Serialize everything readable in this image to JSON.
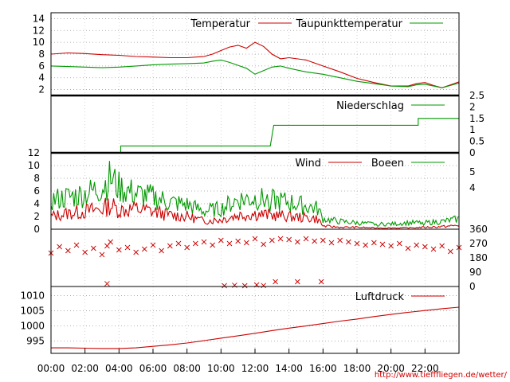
{
  "chart_data": [
    {
      "type": "line",
      "panel": "temperature",
      "ylim": [
        1,
        15
      ],
      "yticks": [
        2,
        4,
        6,
        8,
        10,
        12,
        14
      ],
      "grid": "horizontal dotted",
      "legend_position": "top-right",
      "series": [
        {
          "name": "Temperatur",
          "color": "#cc0000",
          "x": [
            0,
            1,
            2,
            3,
            4,
            5,
            6,
            7,
            8,
            9,
            9.5,
            10,
            10.5,
            11,
            11.5,
            12,
            12.5,
            13,
            13.5,
            14,
            15,
            16,
            17,
            18,
            19,
            20,
            21,
            21.5,
            22,
            22.5,
            23,
            23.5,
            24
          ],
          "y": [
            8.0,
            8.2,
            8.1,
            7.9,
            7.8,
            7.6,
            7.5,
            7.4,
            7.4,
            7.6,
            8.0,
            8.6,
            9.2,
            9.5,
            9.0,
            10.0,
            9.3,
            8.0,
            7.2,
            7.4,
            7.0,
            6.0,
            5.0,
            3.9,
            3.2,
            2.6,
            2.6,
            3.0,
            3.2,
            2.7,
            2.3,
            2.8,
            3.3
          ]
        },
        {
          "name": "Taupunkttemperatur",
          "color": "#009900",
          "x": [
            0,
            1,
            2,
            3,
            4,
            5,
            6,
            7,
            8,
            9,
            9.5,
            10,
            10.5,
            11,
            11.5,
            12,
            12.5,
            13,
            13.5,
            14,
            15,
            16,
            17,
            18,
            19,
            20,
            21,
            21.5,
            22,
            22.5,
            23,
            23.5,
            24
          ],
          "y": [
            6.0,
            5.9,
            5.8,
            5.7,
            5.8,
            6.0,
            6.2,
            6.3,
            6.4,
            6.5,
            6.8,
            7.0,
            6.6,
            6.1,
            5.6,
            4.6,
            5.2,
            5.8,
            6.0,
            5.6,
            5.0,
            4.6,
            4.0,
            3.4,
            3.0,
            2.6,
            2.5,
            2.8,
            2.9,
            2.6,
            2.3,
            2.7,
            3.1
          ]
        }
      ]
    },
    {
      "type": "line",
      "panel": "precipitation",
      "ylim": [
        0,
        2.5
      ],
      "yticks": [
        "0",
        "0.5",
        "1",
        "1.5",
        "2",
        "2.5"
      ],
      "legend_position": "top-right",
      "series": [
        {
          "name": "Niederschlag",
          "color": "#009900",
          "x": [
            0,
            4.1,
            4.1,
            12.9,
            13.1,
            21.6,
            21.6,
            24
          ],
          "y": [
            0,
            0,
            0.3,
            0.3,
            1.2,
            1.2,
            1.5,
            1.5
          ]
        }
      ]
    },
    {
      "type": "line",
      "panel": "wind",
      "ylim": [
        0,
        12
      ],
      "yticks_left": [
        0,
        2,
        4,
        6,
        8,
        10,
        12
      ],
      "yticks_right": [
        "4",
        "5"
      ],
      "grid": "horizontal dotted",
      "legend_position": "top-right",
      "series": [
        {
          "name": "Wind",
          "color": "#cc0000",
          "x": [
            0,
            1,
            2,
            3,
            3.5,
            4,
            5,
            6,
            7,
            8,
            9,
            10,
            11,
            12,
            13,
            14,
            15,
            15.7,
            16,
            17,
            18,
            19,
            20,
            21,
            22,
            23,
            24
          ],
          "y": [
            2.0,
            2.5,
            2.8,
            3.2,
            3.8,
            3.0,
            3.2,
            2.8,
            2.2,
            2.0,
            1.3,
            1.5,
            2.2,
            2.4,
            2.2,
            2.0,
            1.8,
            1.6,
            0.5,
            0.3,
            0.3,
            0.2,
            0.2,
            0.2,
            0.3,
            0.4,
            0.6
          ]
        },
        {
          "name": "Boeen",
          "color": "#009900",
          "x": [
            0,
            1,
            2,
            3,
            3.5,
            4,
            5,
            6,
            7,
            8,
            9,
            10,
            11,
            12,
            13,
            14,
            15,
            15.7,
            16,
            17,
            18,
            19,
            20,
            21,
            22,
            23,
            24
          ],
          "y": [
            4.5,
            5.0,
            5.5,
            6.5,
            8.0,
            6.5,
            5.5,
            5.0,
            4.2,
            3.8,
            2.8,
            3.2,
            4.6,
            4.8,
            4.5,
            4.2,
            3.6,
            3.2,
            1.6,
            1.2,
            1.0,
            0.8,
            0.8,
            1.0,
            1.0,
            1.2,
            1.6
          ]
        }
      ]
    },
    {
      "type": "scatter",
      "panel": "wind_direction",
      "ylim": [
        0,
        360
      ],
      "yticks_right": [
        "0",
        "90",
        "180",
        "270",
        "360"
      ],
      "points_color": "#cc0000",
      "marker": "x",
      "x": [
        0,
        0.5,
        1,
        1.5,
        2,
        2.5,
        3,
        3.3,
        3.5,
        4,
        4.5,
        5,
        5.5,
        6,
        6.5,
        7,
        7.5,
        8,
        8.5,
        9,
        9.5,
        10,
        10.5,
        11,
        11.5,
        12,
        12.5,
        13,
        13.5,
        14,
        14.5,
        15,
        15.5,
        16,
        16.5,
        17,
        17.5,
        18,
        18.5,
        19,
        19.5,
        20,
        20.5,
        21,
        21.5,
        22,
        22.5,
        23,
        23.5,
        24,
        10.2,
        10.8,
        11.4,
        12.1,
        12.5,
        13.2,
        14.5,
        15.9,
        3.3
      ],
      "y": [
        210,
        250,
        225,
        260,
        215,
        240,
        200,
        255,
        280,
        230,
        245,
        215,
        235,
        260,
        225,
        255,
        270,
        245,
        270,
        280,
        260,
        290,
        270,
        285,
        275,
        300,
        265,
        290,
        300,
        295,
        280,
        300,
        285,
        290,
        275,
        290,
        280,
        270,
        260,
        275,
        265,
        255,
        270,
        240,
        260,
        250,
        235,
        255,
        220,
        245,
        5,
        8,
        5,
        10,
        6,
        30,
        30,
        30,
        18
      ]
    },
    {
      "type": "line",
      "panel": "pressure",
      "ylim": [
        991,
        1013
      ],
      "yticks": [
        995,
        1000,
        1005,
        1010
      ],
      "grid": "horizontal dotted",
      "legend_position": "top-right",
      "series": [
        {
          "name": "Luftdruck",
          "color": "#cc0000",
          "x": [
            0,
            1,
            2,
            3,
            4,
            5,
            6,
            7,
            8,
            9,
            10,
            11,
            12,
            13,
            14,
            15,
            16,
            17,
            18,
            19,
            20,
            21,
            22,
            23,
            24
          ],
          "y": [
            992.8,
            992.8,
            992.7,
            992.6,
            992.6,
            992.8,
            993.3,
            993.8,
            994.4,
            995.2,
            996.0,
            996.8,
            997.6,
            998.5,
            999.3,
            1000.0,
            1000.8,
            1001.6,
            1002.3,
            1003.1,
            1003.8,
            1004.5,
            1005.1,
            1005.7,
            1006.2
          ]
        }
      ]
    }
  ],
  "x_axis": {
    "range": [
      0,
      24
    ],
    "tick_labels": [
      "00:00",
      "02:00",
      "04:00",
      "06:00",
      "08:00",
      "10:00",
      "12:00",
      "14:00",
      "16:00",
      "18:00",
      "20:00",
      "22:00"
    ]
  },
  "footer": {
    "url": "http://www.tiefffliegen.de/wetter/"
  }
}
